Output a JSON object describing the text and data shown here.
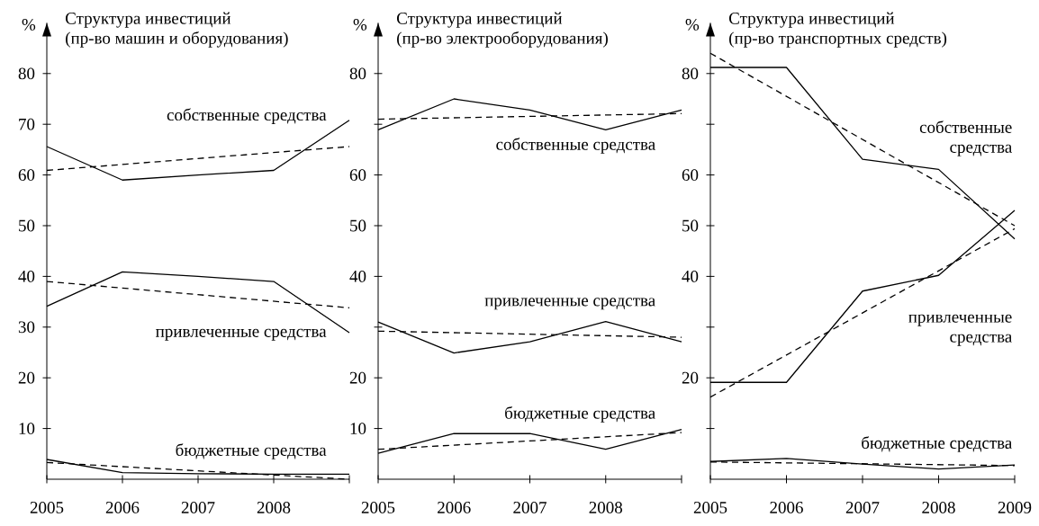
{
  "chart_data": [
    {
      "type": "line",
      "title": "Структура инвестиций",
      "subtitle": "(пр-во машин и оборудования)",
      "ylabel": "%",
      "xlim": [
        2005,
        2009
      ],
      "ylim": [
        0,
        90
      ],
      "xticks": [
        2005,
        2006,
        2007,
        2008,
        {
          "value": 2009,
          "label": null
        }
      ],
      "yticks": [
        10,
        20,
        30,
        40,
        50,
        60,
        70,
        80
      ],
      "marker": "none",
      "series": [
        {
          "name": "собственные средства",
          "color": "#000000",
          "line_style": "solid",
          "x": [
            2005,
            2006,
            2007,
            2008,
            2009
          ],
          "values": [
            65.6,
            59,
            60,
            60.9,
            70.8
          ]
        },
        {
          "color": "#000000",
          "line_style": "dashed",
          "x": [
            2005,
            2009
          ],
          "values": [
            60.9,
            65.6
          ]
        },
        {
          "name": "привлеченные средства",
          "color": "#000000",
          "line_style": "solid",
          "x": [
            2005,
            2006,
            2007,
            2008,
            2009
          ],
          "values": [
            34.1,
            40.9,
            40,
            39,
            28.9
          ]
        },
        {
          "color": "#000000",
          "line_style": "dashed",
          "x": [
            2005,
            2009
          ],
          "values": [
            39,
            33.8
          ]
        },
        {
          "name": "бюджетные средства",
          "color": "#000000",
          "line_style": "solid",
          "x": [
            2005,
            2006,
            2007,
            2008,
            2009
          ],
          "values": [
            3.9,
            1.3,
            1.1,
            1,
            1
          ]
        },
        {
          "color": "#000000",
          "line_style": "dashed",
          "x": [
            2005,
            2009
          ],
          "values": [
            3.3,
            0
          ]
        }
      ]
    },
    {
      "type": "line",
      "title": "Структура инвестиций",
      "subtitle": "(пр-во электрооборудования)",
      "ylabel": "%",
      "xlim": [
        2005,
        2009
      ],
      "ylim": [
        0,
        90
      ],
      "xticks": [
        2005,
        2006,
        2007,
        2008,
        {
          "value": 2009,
          "label": null
        }
      ],
      "yticks": [
        10,
        20,
        {
          "value": 30,
          "label": null
        },
        40,
        50,
        60,
        {
          "value": 70,
          "label": null
        },
        80
      ],
      "marker": "none",
      "series": [
        {
          "name": "собственные средства",
          "color": "#000000",
          "line_style": "solid",
          "x": [
            2005,
            2006,
            2007,
            2008,
            2009
          ],
          "values": [
            68.9,
            75,
            72.8,
            68.9,
            72.8
          ]
        },
        {
          "color": "#000000",
          "line_style": "dashed",
          "x": [
            2005,
            2009
          ],
          "values": [
            71,
            72.1
          ]
        },
        {
          "name": "привлеченные средства",
          "color": "#000000",
          "line_style": "solid",
          "x": [
            2005,
            2006,
            2007,
            2008,
            2009
          ],
          "values": [
            31,
            24.9,
            27.1,
            31.1,
            27.1
          ]
        },
        {
          "color": "#000000",
          "line_style": "dashed",
          "x": [
            2005,
            2009
          ],
          "values": [
            29.2,
            28
          ]
        },
        {
          "name": "бюджетные средства",
          "color": "#000000",
          "line_style": "solid",
          "x": [
            2005,
            2006,
            2007,
            2008,
            2009
          ],
          "values": [
            5.1,
            9,
            9,
            5.9,
            9.8
          ]
        },
        {
          "color": "#000000",
          "line_style": "dashed",
          "x": [
            2005,
            2009
          ],
          "values": [
            5.9,
            9.2
          ]
        }
      ]
    },
    {
      "type": "line",
      "title": "Структура инвестиций",
      "subtitle": "(пр-во транспортных средств)",
      "ylabel": "%",
      "xlim": [
        2005,
        2009
      ],
      "ylim": [
        0,
        90
      ],
      "xticks": [
        2005,
        2006,
        2007,
        2008,
        2009
      ],
      "yticks": [
        {
          "value": 10,
          "label": null
        },
        20,
        {
          "value": 30,
          "label": null
        },
        40,
        50,
        60,
        {
          "value": 70,
          "label": null
        },
        80
      ],
      "marker": "none",
      "series": [
        {
          "name": "собственные средства",
          "color": "#000000",
          "line_style": "solid",
          "x": [
            2005,
            2006,
            2007,
            2008,
            2009
          ],
          "values": [
            81.2,
            81.2,
            63.1,
            61.1,
            47.4
          ]
        },
        {
          "color": "#000000",
          "line_style": "dashed",
          "x": [
            2005,
            2009
          ],
          "values": [
            84,
            50
          ]
        },
        {
          "name": "привлеченные средства",
          "color": "#000000",
          "line_style": "solid",
          "x": [
            2005,
            2006,
            2007,
            2008,
            2009
          ],
          "values": [
            19.1,
            19.1,
            37.1,
            40.2,
            53
          ]
        },
        {
          "color": "#000000",
          "line_style": "dashed",
          "x": [
            2005,
            2009
          ],
          "values": [
            16.2,
            49.4
          ]
        },
        {
          "name": "бюджетные средства",
          "color": "#000000",
          "line_style": "solid",
          "x": [
            2005,
            2006,
            2007,
            2008,
            2009
          ],
          "values": [
            3.5,
            4.1,
            3,
            2,
            2.8
          ]
        },
        {
          "color": "#000000",
          "line_style": "dashed",
          "x": [
            2005,
            2009
          ],
          "values": [
            3.4,
            2.7
          ]
        }
      ]
    }
  ]
}
